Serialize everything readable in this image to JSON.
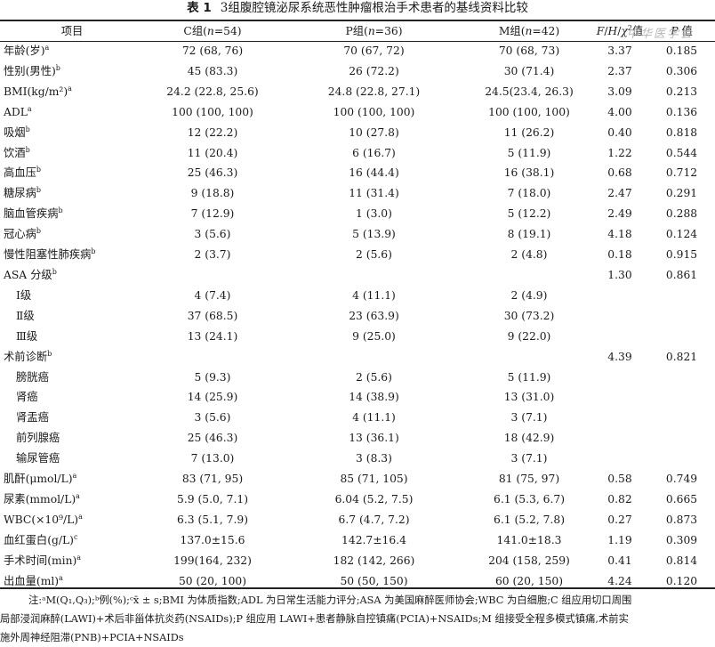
{
  "title": {
    "number": "表 1",
    "text": "3组腹腔镜泌尿系统恶性肿瘤根治手术患者的基线资料比较"
  },
  "headers": {
    "item": "项目",
    "c_pre": "C组(",
    "c_n": "n",
    "c_post": "=54)",
    "p_pre": "P组(",
    "p_n": "n",
    "p_post": "=36)",
    "m_pre": "M组(",
    "m_n": "n",
    "m_post": "=42)",
    "stat_f": "F",
    "stat_sep1": "/",
    "stat_h": "H",
    "stat_sep2": "/",
    "stat_chi": "χ",
    "stat_sup": "2",
    "stat_post": "值",
    "p_italic": "P",
    "p_post2": " 值"
  },
  "watermark": "中华医学会",
  "rows": [
    {
      "label": "年龄(岁)",
      "sup": "a",
      "indent": false,
      "c": "72 (68, 76)",
      "p": "70 (67, 72)",
      "m": "70 (68, 73)",
      "stat": "3.37",
      "pval": "0.185"
    },
    {
      "label": "性别(男性)",
      "sup": "b",
      "indent": false,
      "c": "45 (83.3)",
      "p": "26 (72.2)",
      "m": "30 (71.4)",
      "stat": "2.37",
      "pval": "0.306"
    },
    {
      "label": "BMI(kg/m²)",
      "sup": "a",
      "indent": false,
      "c": "24.2 (22.8, 25.6)",
      "p": "24.8 (22.8, 27.1)",
      "m": "24.5(23.4, 26.3)",
      "stat": "3.09",
      "pval": "0.213"
    },
    {
      "label": "ADL",
      "sup": "a",
      "indent": false,
      "c": "100 (100, 100)",
      "p": "100 (100, 100)",
      "m": "100 (100, 100)",
      "stat": "4.00",
      "pval": "0.136"
    },
    {
      "label": "吸烟",
      "sup": "b",
      "indent": false,
      "c": "12 (22.2)",
      "p": "10 (27.8)",
      "m": "11 (26.2)",
      "stat": "0.40",
      "pval": "0.818"
    },
    {
      "label": "饮酒",
      "sup": "b",
      "indent": false,
      "c": "11 (20.4)",
      "p": "6 (16.7)",
      "m": "5 (11.9)",
      "stat": "1.22",
      "pval": "0.544"
    },
    {
      "label": "高血压",
      "sup": "b",
      "indent": false,
      "c": "25 (46.3)",
      "p": "16 (44.4)",
      "m": "16 (38.1)",
      "stat": "0.68",
      "pval": "0.712"
    },
    {
      "label": "糖尿病",
      "sup": "b",
      "indent": false,
      "c": "9 (18.8)",
      "p": "11 (31.4)",
      "m": "7 (18.0)",
      "stat": "2.47",
      "pval": "0.291"
    },
    {
      "label": "脑血管疾病",
      "sup": "b",
      "indent": false,
      "c": "7 (12.9)",
      "p": "1 (3.0)",
      "m": "5 (12.2)",
      "stat": "2.49",
      "pval": "0.288"
    },
    {
      "label": "冠心病",
      "sup": "b",
      "indent": false,
      "c": "3 (5.6)",
      "p": "5 (13.9)",
      "m": "8 (19.1)",
      "stat": "4.18",
      "pval": "0.124"
    },
    {
      "label": "慢性阻塞性肺疾病",
      "sup": "b",
      "indent": false,
      "c": "2 (3.7)",
      "p": "2 (5.6)",
      "m": "2 (4.8)",
      "stat": "0.18",
      "pval": "0.915"
    },
    {
      "label": "ASA 分级",
      "sup": "b",
      "indent": false,
      "c": "",
      "p": "",
      "m": "",
      "stat": "1.30",
      "pval": "0.861"
    },
    {
      "label": "Ⅰ级",
      "sup": "",
      "indent": true,
      "c": "4 (7.4)",
      "p": "4 (11.1)",
      "m": "2 (4.9)",
      "stat": "",
      "pval": ""
    },
    {
      "label": "Ⅱ级",
      "sup": "",
      "indent": true,
      "c": "37 (68.5)",
      "p": "23 (63.9)",
      "m": "30 (73.2)",
      "stat": "",
      "pval": ""
    },
    {
      "label": "Ⅲ级",
      "sup": "",
      "indent": true,
      "c": "13 (24.1)",
      "p": "9 (25.0)",
      "m": "9 (22.0)",
      "stat": "",
      "pval": ""
    },
    {
      "label": "术前诊断",
      "sup": "b",
      "indent": false,
      "c": "",
      "p": "",
      "m": "",
      "stat": "4.39",
      "pval": "0.821"
    },
    {
      "label": "膀胱癌",
      "sup": "",
      "indent": true,
      "c": "5 (9.3)",
      "p": "2 (5.6)",
      "m": "5 (11.9)",
      "stat": "",
      "pval": ""
    },
    {
      "label": "肾癌",
      "sup": "",
      "indent": true,
      "c": "14 (25.9)",
      "p": "14 (38.9)",
      "m": "13 (31.0)",
      "stat": "",
      "pval": ""
    },
    {
      "label": "肾盂癌",
      "sup": "",
      "indent": true,
      "c": "3 (5.6)",
      "p": "4 (11.1)",
      "m": "3 (7.1)",
      "stat": "",
      "pval": ""
    },
    {
      "label": "前列腺癌",
      "sup": "",
      "indent": true,
      "c": "25 (46.3)",
      "p": "13 (36.1)",
      "m": "18 (42.9)",
      "stat": "",
      "pval": ""
    },
    {
      "label": "输尿管癌",
      "sup": "",
      "indent": true,
      "c": "7 (13.0)",
      "p": "3 (8.3)",
      "m": "3 (7.1)",
      "stat": "",
      "pval": ""
    },
    {
      "label": "肌酐(μmol/L)",
      "sup": "a",
      "indent": false,
      "c": "83 (71, 95)",
      "p": "85 (71, 105)",
      "m": "81 (75, 97)",
      "stat": "0.58",
      "pval": "0.749"
    },
    {
      "label": "尿素(mmol/L)",
      "sup": "a",
      "indent": false,
      "c": "5.9 (5.0, 7.1)",
      "p": "6.04 (5.2, 7.5)",
      "m": "6.1 (5.3, 6.7)",
      "stat": "0.82",
      "pval": "0.665"
    },
    {
      "label": "WBC(×10⁹/L)",
      "sup": "a",
      "indent": false,
      "c": "6.3 (5.1, 7.9)",
      "p": "6.7 (4.7, 7.2)",
      "m": "6.1 (5.2, 7.8)",
      "stat": "0.27",
      "pval": "0.873"
    },
    {
      "label": "血红蛋白(g/L)",
      "sup": "c",
      "indent": false,
      "c": "137.0±15.6",
      "p": "142.7±16.4",
      "m": "141.0±18.3",
      "stat": "1.19",
      "pval": "0.309"
    },
    {
      "label": "手术时间(min)",
      "sup": "a",
      "indent": false,
      "c": "199(164, 232)",
      "p": "182 (142, 266)",
      "m": "204 (158, 259)",
      "stat": "0.41",
      "pval": "0.814"
    },
    {
      "label": "出血量(ml)",
      "sup": "a",
      "indent": false,
      "c": "50 (20, 100)",
      "p": "50 (50, 150)",
      "m": "60 (20, 150)",
      "stat": "4.24",
      "pval": "0.120"
    }
  ],
  "notes": [
    "注:ᵃM(Q₁,Q₃);ᵇ例(%);ᶜx̄ ± s;BMI 为体质指数;ADL 为日常生活能力评分;ASA 为美国麻醉医师协会;WBC 为白细胞;C 组应用切口周围",
    "局部浸润麻醉(LAWI)+术后非甾体抗炎药(NSAIDs);P 组应用 LAWI+患者静脉自控镇痛(PCIA)+NSAIDs;M 组接受全程多模式镇痛,术前实",
    "施外周神经阻滞(PNB)+PCIA+NSAIDs"
  ]
}
